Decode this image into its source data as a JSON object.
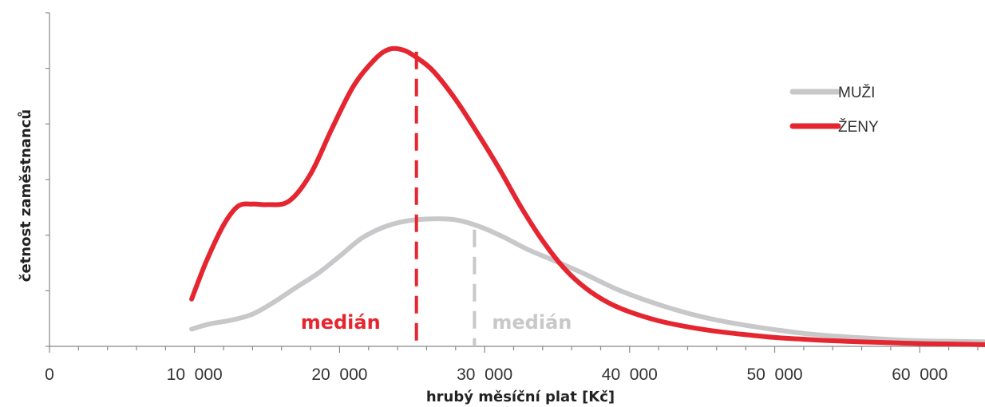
{
  "chart_data": {
    "type": "line",
    "title": "",
    "xlabel": "hrubý měsíční plat [Kč]",
    "ylabel": "četnost zaměstnanců",
    "xlim": [
      0,
      64500
    ],
    "ylim": [
      0,
      6
    ],
    "x_ticks": [
      0,
      10000,
      20000,
      30000,
      40000,
      50000,
      60000
    ],
    "x_tick_labels": [
      "0",
      "10  000",
      "20  000",
      "30  000",
      "40  000",
      "50  000",
      "60  000"
    ],
    "y_ticks": [
      0,
      1,
      2,
      3,
      4,
      5,
      6
    ],
    "y_tick_labels_visible": false,
    "grid": false,
    "legend_position": "top-right",
    "series": [
      {
        "name": "MUŽI",
        "color": "#c8c8ca",
        "x": [
          9800,
          11000,
          12500,
          14000,
          15500,
          17000,
          18500,
          20000,
          21500,
          23000,
          24500,
          26000,
          27500,
          28500,
          30000,
          31500,
          33000,
          35000,
          37000,
          39000,
          41000,
          43000,
          45000,
          47500,
          50000,
          52500,
          55000,
          57500,
          60000,
          62500,
          64500
        ],
        "y": [
          0.31,
          0.4,
          0.47,
          0.58,
          0.8,
          1.06,
          1.31,
          1.62,
          1.94,
          2.14,
          2.25,
          2.29,
          2.29,
          2.25,
          2.12,
          1.94,
          1.74,
          1.52,
          1.29,
          1.04,
          0.84,
          0.67,
          0.53,
          0.4,
          0.3,
          0.22,
          0.17,
          0.13,
          0.1,
          0.09,
          0.08
        ]
      },
      {
        "name": "ŽENY",
        "color": "#e52630",
        "x": [
          9800,
          10800,
          12000,
          13000,
          14000,
          15000,
          16500,
          18000,
          19500,
          21000,
          22500,
          23500,
          24500,
          25500,
          26500,
          28000,
          29500,
          31000,
          32500,
          34000,
          35500,
          37000,
          38500,
          40000,
          42000,
          44000,
          46000,
          48000,
          50000,
          52500,
          55000,
          57500,
          60000,
          62500,
          64500
        ],
        "y": [
          0.85,
          1.52,
          2.18,
          2.52,
          2.56,
          2.55,
          2.61,
          3.1,
          3.93,
          4.7,
          5.18,
          5.35,
          5.32,
          5.16,
          4.94,
          4.44,
          3.84,
          3.2,
          2.51,
          1.9,
          1.4,
          1.04,
          0.79,
          0.62,
          0.46,
          0.35,
          0.27,
          0.21,
          0.16,
          0.12,
          0.09,
          0.07,
          0.05,
          0.04,
          0.03
        ]
      }
    ],
    "medians": [
      {
        "series": "ŽENY",
        "label": "medián",
        "x": 25300,
        "y_top": 5.3,
        "color": "#e52630"
      },
      {
        "series": "MUŽI",
        "label": "medián",
        "x": 29300,
        "y_top": 2.1,
        "color": "#c8c8ca"
      }
    ]
  }
}
